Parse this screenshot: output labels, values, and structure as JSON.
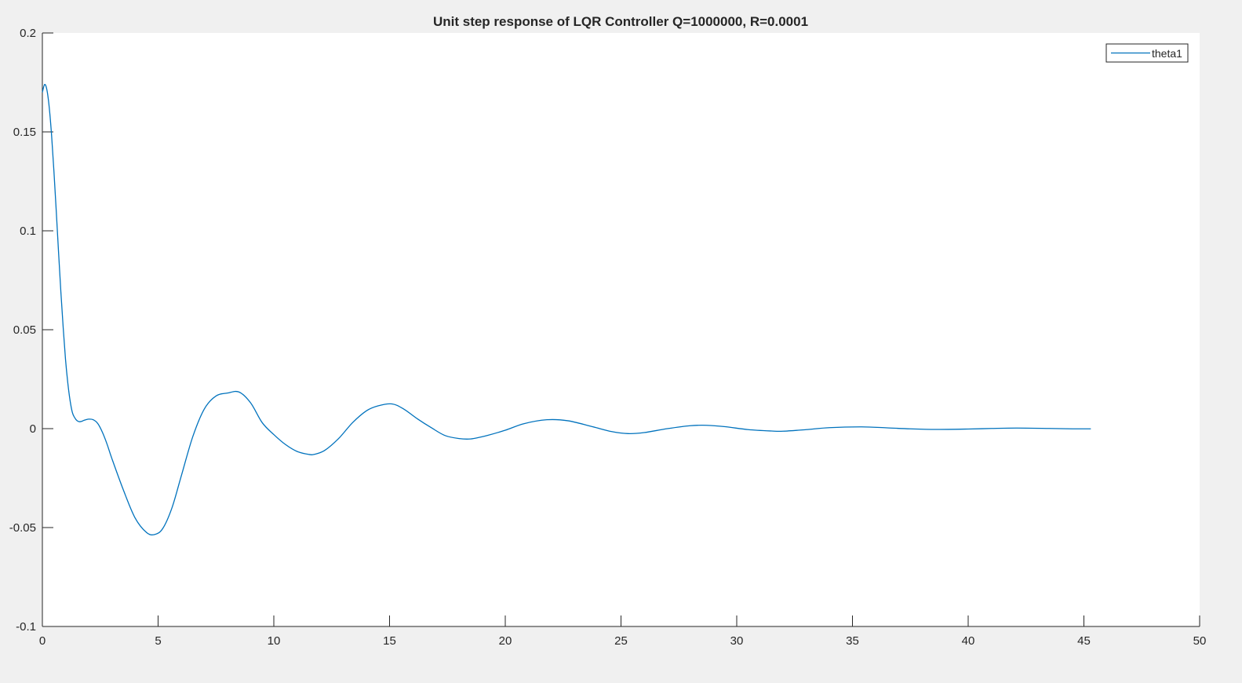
{
  "figure": {
    "background": "#f0f0f0",
    "axes_background": "#ffffff"
  },
  "chart_data": {
    "type": "line",
    "title": "Unit step response of LQR Controller Q=1000000, R=0.0001",
    "xlabel": "",
    "ylabel": "",
    "xlim": [
      0,
      50
    ],
    "ylim": [
      -0.1,
      0.2
    ],
    "x_ticks": [
      0,
      5,
      10,
      15,
      20,
      25,
      30,
      35,
      40,
      45,
      50
    ],
    "x_tick_labels": [
      "0",
      "5",
      "10",
      "15",
      "20",
      "25",
      "30",
      "35",
      "40",
      "45",
      "50"
    ],
    "y_ticks": [
      -0.1,
      -0.05,
      0,
      0.05,
      0.1,
      0.15,
      0.2
    ],
    "y_tick_labels": [
      "-0.1",
      "-0.05",
      "0",
      "0.05",
      "0.1",
      "0.15",
      "0.2"
    ],
    "grid": false,
    "legend": {
      "placement": "top-right",
      "entries": [
        "theta1"
      ]
    },
    "series": [
      {
        "name": "theta1",
        "color": "#0072bd",
        "x": [
          0,
          0.1,
          0.2,
          0.3,
          0.4,
          0.5,
          0.6,
          0.7,
          0.8,
          0.9,
          1.0,
          1.1,
          1.2,
          1.3,
          1.4,
          1.5,
          1.6,
          1.7,
          1.8,
          2.0,
          2.2,
          2.4,
          2.6,
          2.8,
          3.0,
          3.5,
          4.0,
          4.5,
          4.85,
          5.2,
          5.6,
          6.0,
          6.5,
          7.0,
          7.5,
          8.0,
          8.5,
          9.0,
          9.5,
          10.0,
          10.5,
          11.0,
          11.5,
          11.75,
          12.2,
          12.8,
          13.4,
          14.0,
          14.5,
          15.1,
          15.6,
          16.2,
          16.8,
          17.4,
          18.0,
          18.5,
          19.2,
          20.0,
          20.8,
          21.8,
          22.7,
          23.7,
          24.6,
          25.3,
          26.0,
          27.0,
          28.0,
          28.7,
          29.5,
          30.5,
          31.5,
          32.0,
          33.0,
          34.0,
          35.4,
          36.5,
          37.5,
          38.6,
          40.0,
          41.0,
          42.1,
          43.5,
          44.5,
          45.3
        ],
        "y": [
          0.17,
          0.174,
          0.171,
          0.162,
          0.148,
          0.13,
          0.11,
          0.089,
          0.069,
          0.051,
          0.035,
          0.023,
          0.014,
          0.008,
          0.0055,
          0.004,
          0.0035,
          0.0037,
          0.0042,
          0.0048,
          0.0045,
          0.0025,
          -0.002,
          -0.008,
          -0.015,
          -0.031,
          -0.045,
          -0.0525,
          -0.0535,
          -0.0505,
          -0.04,
          -0.024,
          -0.004,
          0.01,
          0.0165,
          0.018,
          0.0185,
          0.013,
          0.003,
          -0.003,
          -0.008,
          -0.0115,
          -0.013,
          -0.013,
          -0.011,
          -0.005,
          0.003,
          0.009,
          0.0115,
          0.0125,
          0.01,
          0.005,
          0.0005,
          -0.0035,
          -0.005,
          -0.0052,
          -0.0035,
          -0.0008,
          0.0025,
          0.0045,
          0.004,
          0.0012,
          -0.0015,
          -0.0025,
          -0.002,
          0.0,
          0.0015,
          0.0017,
          0.001,
          -0.0005,
          -0.0012,
          -0.0013,
          -0.0005,
          0.0005,
          0.0009,
          0.0004,
          -0.0001,
          -0.0004,
          -0.0002,
          0.0001,
          0.0003,
          0.0001,
          -0.0001,
          -0.0001
        ]
      }
    ]
  }
}
